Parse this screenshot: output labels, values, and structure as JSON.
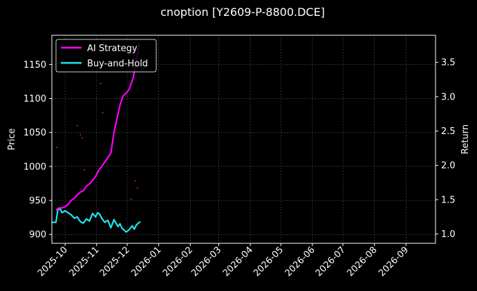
{
  "chart_data": {
    "type": "line",
    "title": "cnoption [Y2609-P-8800.DCE]",
    "ylabel": "Price",
    "ylabel_right": "Return",
    "xlim": [
      "2025-09-18",
      "2026-09-30"
    ],
    "ylim": [
      887,
      1193
    ],
    "ylim_right": [
      0.865,
      3.895
    ],
    "x_ticks": [
      "2025-10-01",
      "2025-11-01",
      "2025-12-01",
      "2026-01-01",
      "2026-02-01",
      "2026-03-01",
      "2026-04-01",
      "2026-05-01",
      "2026-06-01",
      "2026-07-01",
      "2026-08-01",
      "2026-09-01"
    ],
    "x_tick_labels": [
      "2025-10",
      "2025-11",
      "2025-12",
      "2026-01",
      "2026-02",
      "2026-03",
      "2026-04",
      "2026-05",
      "2026-06",
      "2026-07",
      "2026-08",
      "2026-09"
    ],
    "y_ticks": [
      900,
      950,
      1000,
      1050,
      1100,
      1150
    ],
    "y_ticks_right": [
      1.0,
      1.5,
      2.0,
      2.5,
      3.0,
      3.5
    ],
    "y_tick_labels_right": [
      "1.0",
      "1.5",
      "2.0",
      "2.5",
      "3.0",
      "3.5"
    ],
    "grid": true,
    "legend_position": "top-left",
    "colors": {
      "ai": "#ff00ff",
      "bh": "#22e4ee",
      "price_dots": "#ff2a6d",
      "background": "#000000",
      "grid": "#555555"
    },
    "series": [
      {
        "name": "AI Strategy",
        "axis": "right",
        "x": [
          "2025-09-22",
          "2025-09-25",
          "2025-09-28",
          "2025-10-01",
          "2025-10-04",
          "2025-10-07",
          "2025-10-10",
          "2025-10-13",
          "2025-10-16",
          "2025-10-19",
          "2025-10-22",
          "2025-10-25",
          "2025-10-28",
          "2025-10-31",
          "2025-11-03",
          "2025-11-06",
          "2025-11-09",
          "2025-11-12",
          "2025-11-15",
          "2025-11-18",
          "2025-11-21",
          "2025-11-24",
          "2025-11-27",
          "2025-11-29",
          "2025-12-01",
          "2025-12-03",
          "2025-12-05",
          "2025-12-07",
          "2025-12-09",
          "2025-12-11",
          "2025-12-13"
        ],
        "y": [
          1.35,
          1.38,
          1.38,
          1.4,
          1.43,
          1.49,
          1.52,
          1.57,
          1.61,
          1.63,
          1.7,
          1.73,
          1.78,
          1.84,
          1.93,
          1.98,
          2.05,
          2.11,
          2.18,
          2.48,
          2.68,
          2.88,
          3.01,
          3.04,
          3.07,
          3.11,
          3.19,
          3.28,
          3.45,
          3.62,
          3.78
        ]
      },
      {
        "name": "Buy-and-Hold",
        "axis": "right",
        "x": [
          "2025-09-18",
          "2025-09-22",
          "2025-09-24",
          "2025-09-26",
          "2025-09-28",
          "2025-10-01",
          "2025-10-04",
          "2025-10-07",
          "2025-10-10",
          "2025-10-13",
          "2025-10-16",
          "2025-10-19",
          "2025-10-22",
          "2025-10-25",
          "2025-10-28",
          "2025-10-31",
          "2025-11-02",
          "2025-11-04",
          "2025-11-06",
          "2025-11-09",
          "2025-11-12",
          "2025-11-15",
          "2025-11-18",
          "2025-11-20",
          "2025-11-22",
          "2025-11-24",
          "2025-11-26",
          "2025-11-28",
          "2025-11-30",
          "2025-12-02",
          "2025-12-04",
          "2025-12-06",
          "2025-12-08",
          "2025-12-10",
          "2025-12-12",
          "2025-12-14"
        ],
        "y": [
          1.17,
          1.17,
          1.36,
          1.37,
          1.31,
          1.34,
          1.31,
          1.28,
          1.23,
          1.25,
          1.18,
          1.16,
          1.22,
          1.19,
          1.3,
          1.25,
          1.31,
          1.29,
          1.23,
          1.17,
          1.2,
          1.09,
          1.21,
          1.16,
          1.11,
          1.15,
          1.08,
          1.06,
          1.03,
          1.05,
          1.08,
          1.12,
          1.07,
          1.13,
          1.16,
          1.18
        ]
      }
    ],
    "price_points": [
      {
        "x": "2025-09-23",
        "y": 1028
      },
      {
        "x": "2025-10-13",
        "y": 1060
      },
      {
        "x": "2025-10-16",
        "y": 1047
      },
      {
        "x": "2025-10-18",
        "y": 1042
      },
      {
        "x": "2025-10-20",
        "y": 995
      },
      {
        "x": "2025-11-05",
        "y": 1122
      },
      {
        "x": "2025-11-07",
        "y": 1079
      },
      {
        "x": "2025-12-09",
        "y": 979
      },
      {
        "x": "2025-12-11",
        "y": 968
      },
      {
        "x": "2025-12-05",
        "y": 952
      }
    ]
  }
}
